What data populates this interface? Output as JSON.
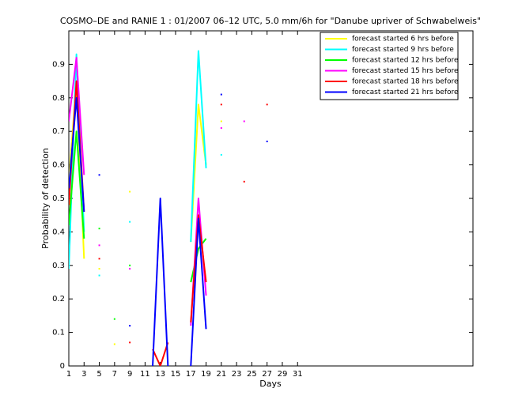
{
  "chart_data": {
    "type": "line",
    "title": "COSMO–DE and RANIE 1 : 01/2007 06–12 UTC, 5.0 mm/6h for \"Danube upriver of Schwabelweis\"",
    "xlabel": "Days",
    "ylabel": "Probability of detection",
    "x": [
      1,
      2,
      3,
      4,
      5,
      6,
      7,
      8,
      9,
      10,
      11,
      12,
      13,
      14,
      15,
      16,
      17,
      18,
      19,
      20,
      21,
      22,
      23,
      24,
      25,
      26,
      27
    ],
    "xlim": [
      1,
      54
    ],
    "xticks": [
      1,
      3,
      5,
      7,
      9,
      11,
      13,
      15,
      17,
      19,
      21,
      23,
      25,
      27,
      29,
      31
    ],
    "ylim": [
      0,
      1
    ],
    "yticks": [
      0,
      0.1,
      0.2,
      0.3,
      0.4,
      0.5,
      0.6,
      0.7,
      0.8,
      0.9
    ],
    "legend": "upper right",
    "series": [
      {
        "name": "forecast started 6 hrs before",
        "color": "#ffff00",
        "values": [
          0.55,
          0.85,
          0.32,
          null,
          0.29,
          null,
          0.065,
          null,
          0.52,
          null,
          null,
          null,
          null,
          null,
          null,
          null,
          0.37,
          0.78,
          0.6,
          null,
          0.73,
          null,
          null,
          null,
          null,
          null,
          null
        ]
      },
      {
        "name": "forecast started 9 hrs before",
        "color": "#00ffff",
        "values": [
          0.29,
          0.93,
          0.4,
          null,
          0.27,
          null,
          null,
          null,
          0.43,
          null,
          null,
          null,
          null,
          null,
          null,
          null,
          0.37,
          0.94,
          0.59,
          null,
          0.63,
          null,
          null,
          null,
          null,
          null,
          null
        ]
      },
      {
        "name": "forecast started 12 hrs before",
        "color": "#00ff00",
        "values": [
          0.42,
          0.7,
          0.38,
          null,
          0.41,
          null,
          0.14,
          null,
          0.3,
          null,
          null,
          null,
          null,
          null,
          null,
          null,
          0.25,
          0.35,
          0.38,
          null,
          null,
          null,
          null,
          null,
          null,
          null,
          null
        ]
      },
      {
        "name": "forecast started 15 hrs before",
        "color": "#ff00ff",
        "values": [
          0.73,
          0.92,
          0.57,
          null,
          0.36,
          null,
          null,
          null,
          0.29,
          null,
          null,
          null,
          null,
          null,
          null,
          null,
          0.12,
          0.5,
          0.21,
          null,
          0.71,
          null,
          null,
          0.73,
          null,
          null,
          null
        ]
      },
      {
        "name": "forecast started 18 hrs before",
        "color": "#ff0000",
        "values": [
          0.48,
          0.85,
          0.46,
          null,
          0.32,
          null,
          null,
          null,
          0.07,
          null,
          null,
          0.05,
          0,
          0.07,
          null,
          null,
          0.13,
          0.45,
          0.25,
          null,
          0.78,
          null,
          null,
          0.55,
          null,
          null,
          0.78
        ]
      },
      {
        "name": "forecast started 21 hrs before",
        "color": "#0000ff",
        "values": [
          0.53,
          0.8,
          0.46,
          null,
          0.57,
          null,
          null,
          null,
          0.12,
          null,
          null,
          0,
          0.5,
          0,
          null,
          null,
          0,
          0.44,
          0.11,
          null,
          0.81,
          null,
          null,
          null,
          null,
          null,
          0.67
        ]
      }
    ]
  }
}
